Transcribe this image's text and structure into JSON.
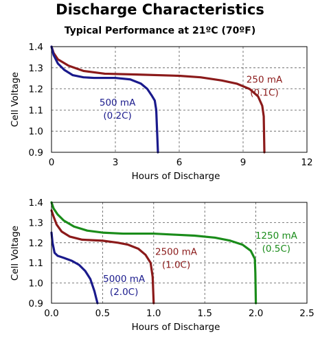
{
  "title": "Discharge Characteristics",
  "subtitle": "Typical Performance at 21ºC (70ºF)",
  "chart_data": [
    {
      "type": "line",
      "xlabel": "Hours of Discharge",
      "ylabel": "Cell Voltage",
      "xlim": [
        0,
        12
      ],
      "ylim": [
        0.9,
        1.4
      ],
      "x_ticks": [
        "0",
        "3",
        "6",
        "9",
        "12"
      ],
      "y_ticks": [
        "0.9",
        "1.0",
        "1.1",
        "1.2",
        "1.3",
        "1.4"
      ],
      "x_tick_values": [
        0,
        3,
        6,
        9,
        12
      ],
      "y_tick_values": [
        0.9,
        1.0,
        1.1,
        1.2,
        1.3,
        1.4
      ],
      "grid": true,
      "series": [
        {
          "name": "250 mA (0.1C)",
          "label_lines": [
            "250 mA",
            "(0.1C)"
          ],
          "label_anchor": [
            10.0,
            1.23
          ],
          "color": "#8b1a1a",
          "points": [
            [
              0.0,
              1.4
            ],
            [
              0.1,
              1.37
            ],
            [
              0.3,
              1.34
            ],
            [
              0.8,
              1.31
            ],
            [
              1.5,
              1.285
            ],
            [
              2.5,
              1.272
            ],
            [
              4.0,
              1.268
            ],
            [
              6.0,
              1.262
            ],
            [
              7.0,
              1.255
            ],
            [
              8.0,
              1.24
            ],
            [
              8.7,
              1.225
            ],
            [
              9.3,
              1.2
            ],
            [
              9.7,
              1.165
            ],
            [
              9.9,
              1.12
            ],
            [
              9.97,
              1.07
            ],
            [
              10.0,
              0.9
            ]
          ]
        },
        {
          "name": "500 mA (0.2C)",
          "label_lines": [
            "500 mA",
            "(0.2C)"
          ],
          "label_anchor": [
            3.1,
            1.12
          ],
          "color": "#1a1a8c",
          "points": [
            [
              0.0,
              1.4
            ],
            [
              0.1,
              1.36
            ],
            [
              0.3,
              1.32
            ],
            [
              0.6,
              1.29
            ],
            [
              1.0,
              1.265
            ],
            [
              1.5,
              1.255
            ],
            [
              2.0,
              1.252
            ],
            [
              3.0,
              1.252
            ],
            [
              3.7,
              1.245
            ],
            [
              4.2,
              1.225
            ],
            [
              4.5,
              1.2
            ],
            [
              4.7,
              1.17
            ],
            [
              4.85,
              1.145
            ],
            [
              4.92,
              1.1
            ],
            [
              5.0,
              0.9
            ]
          ]
        }
      ]
    },
    {
      "type": "line",
      "xlabel": "Hours of Discharge",
      "ylabel": "Cell Voltage",
      "xlim": [
        0,
        2.5
      ],
      "ylim": [
        0.9,
        1.4
      ],
      "x_ticks": [
        "0.0",
        "0.5",
        "1.0",
        "1.5",
        "2.0",
        "2.5"
      ],
      "y_ticks": [
        "0.9",
        "1.0",
        "1.1",
        "1.2",
        "1.3",
        "1.4"
      ],
      "x_tick_values": [
        0,
        0.5,
        1.0,
        1.5,
        2.0,
        2.5
      ],
      "y_tick_values": [
        0.9,
        1.0,
        1.1,
        1.2,
        1.3,
        1.4
      ],
      "grid": true,
      "series": [
        {
          "name": "1250 mA (0.5C)",
          "label_lines": [
            "1250 mA",
            "(0.5C)"
          ],
          "label_anchor": [
            2.2,
            1.22
          ],
          "color": "#1a8c1a",
          "points": [
            [
              0.0,
              1.4
            ],
            [
              0.02,
              1.37
            ],
            [
              0.06,
              1.34
            ],
            [
              0.12,
              1.31
            ],
            [
              0.22,
              1.28
            ],
            [
              0.35,
              1.26
            ],
            [
              0.5,
              1.25
            ],
            [
              0.7,
              1.245
            ],
            [
              1.0,
              1.245
            ],
            [
              1.2,
              1.24
            ],
            [
              1.4,
              1.235
            ],
            [
              1.6,
              1.225
            ],
            [
              1.75,
              1.21
            ],
            [
              1.87,
              1.19
            ],
            [
              1.95,
              1.16
            ],
            [
              1.99,
              1.12
            ],
            [
              1.995,
              1.05
            ],
            [
              2.0,
              0.9
            ]
          ]
        },
        {
          "name": "2500 mA (1.0C)",
          "label_lines": [
            "2500 mA",
            "(1.0C)"
          ],
          "label_anchor": [
            1.22,
            1.14
          ],
          "color": "#8b1a1a",
          "points": [
            [
              0.0,
              1.36
            ],
            [
              0.02,
              1.33
            ],
            [
              0.05,
              1.29
            ],
            [
              0.1,
              1.255
            ],
            [
              0.18,
              1.23
            ],
            [
              0.3,
              1.215
            ],
            [
              0.5,
              1.21
            ],
            [
              0.65,
              1.2
            ],
            [
              0.75,
              1.19
            ],
            [
              0.85,
              1.17
            ],
            [
              0.92,
              1.14
            ],
            [
              0.97,
              1.1
            ],
            [
              0.99,
              1.03
            ],
            [
              1.0,
              0.9
            ]
          ]
        },
        {
          "name": "5000 mA (2.0C)",
          "label_lines": [
            "5000 mA",
            "(2.0C)"
          ],
          "label_anchor": [
            0.71,
            1.005
          ],
          "color": "#1a1a8c",
          "points": [
            [
              0.0,
              1.25
            ],
            [
              0.01,
              1.2
            ],
            [
              0.03,
              1.15
            ],
            [
              0.06,
              1.135
            ],
            [
              0.12,
              1.125
            ],
            [
              0.2,
              1.11
            ],
            [
              0.27,
              1.09
            ],
            [
              0.33,
              1.06
            ],
            [
              0.38,
              1.02
            ],
            [
              0.42,
              0.96
            ],
            [
              0.45,
              0.9
            ]
          ]
        }
      ]
    }
  ]
}
